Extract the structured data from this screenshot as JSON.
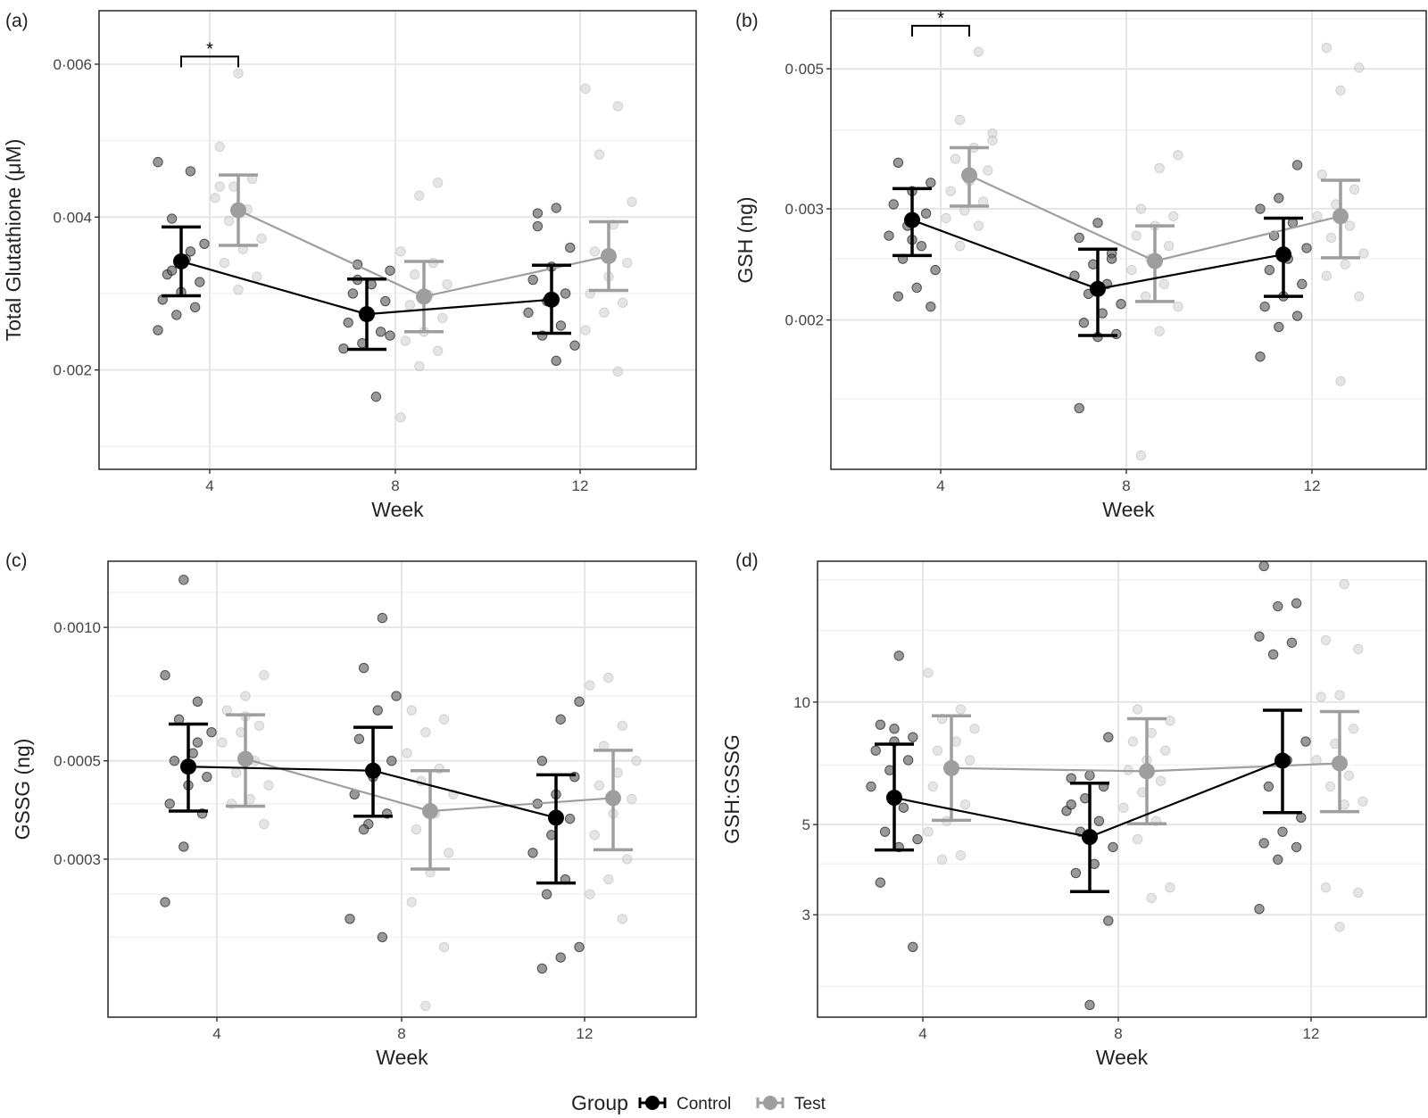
{
  "colors": {
    "control": "#000000",
    "test": "#9e9e9e",
    "grid": "#e6e6e6"
  },
  "legend": {
    "title": "Group",
    "items": [
      {
        "label": "Control",
        "color": "#000000"
      },
      {
        "label": "Test",
        "color": "#9e9e9e"
      }
    ]
  },
  "chart_data": [
    {
      "panel": "(a)",
      "type": "scatter",
      "scale": "linear",
      "xlabel": "Week",
      "ylabel": "Total Glutathione (μM)",
      "weeks": [
        "4",
        "8",
        "12"
      ],
      "ylim": [
        0.0007,
        0.0067
      ],
      "yticks": [
        {
          "value": 0.002,
          "label": "0·002"
        },
        {
          "value": 0.004,
          "label": "0·004"
        },
        {
          "value": 0.006,
          "label": "0·006"
        }
      ],
      "yminor": [
        0.001,
        0.003,
        0.005
      ],
      "significance": [
        {
          "week": "4",
          "label": "*",
          "y": 0.0061
        }
      ],
      "series": [
        {
          "name": "Control",
          "means": [
            0.00342,
            0.00273,
            0.00292
          ],
          "lower": [
            0.00297,
            0.00227,
            0.00248
          ],
          "upper": [
            0.00387,
            0.00319,
            0.00337
          ],
          "points": [
            [
              0.00472,
              0.0046,
              0.00398,
              0.00365,
              0.00345,
              0.00325,
              0.00315,
              0.00302,
              0.00292,
              0.00282,
              0.00272,
              0.00252,
              0.00355,
              0.0033
            ],
            [
              0.00338,
              0.0033,
              0.00312,
              0.003,
              0.0029,
              0.00272,
              0.00262,
              0.0025,
              0.00235,
              0.00228,
              0.00165,
              0.00318,
              0.00245
            ],
            [
              0.00412,
              0.00388,
              0.0036,
              0.00335,
              0.00318,
              0.003,
              0.0029,
              0.00275,
              0.00258,
              0.00245,
              0.00232,
              0.00212,
              0.00405
            ]
          ]
        },
        {
          "name": "Test",
          "means": [
            0.00409,
            0.00296,
            0.00349
          ],
          "lower": [
            0.00363,
            0.0025,
            0.00304
          ],
          "upper": [
            0.00455,
            0.00342,
            0.00394
          ],
          "points": [
            [
              0.00588,
              0.00492,
              0.0045,
              0.0044,
              0.00425,
              0.0041,
              0.00395,
              0.00372,
              0.00358,
              0.0034,
              0.00322,
              0.00305,
              0.0044
            ],
            [
              0.00445,
              0.00428,
              0.00355,
              0.0034,
              0.00325,
              0.00312,
              0.00298,
              0.00285,
              0.00268,
              0.0025,
              0.00238,
              0.00225,
              0.00205,
              0.00138
            ],
            [
              0.00568,
              0.00545,
              0.00482,
              0.0042,
              0.0039,
              0.00355,
              0.0034,
              0.00322,
              0.003,
              0.00288,
              0.00275,
              0.00252,
              0.00198
            ]
          ]
        }
      ]
    },
    {
      "panel": "(b)",
      "type": "scatter",
      "scale": "log",
      "xlabel": "Week",
      "ylabel": "GSH (ng)",
      "weeks": [
        "4",
        "8",
        "12"
      ],
      "ylim": [
        0.00116,
        0.00618
      ],
      "yticks": [
        {
          "value": 0.002,
          "label": "0·002"
        },
        {
          "value": 0.003,
          "label": "0·003"
        },
        {
          "value": 0.005,
          "label": "0·005"
        }
      ],
      "yminor": [
        0.0015,
        0.0025,
        0.004,
        0.006
      ],
      "significance": [
        {
          "week": "4",
          "label": "*",
          "y": 0.00585
        }
      ],
      "series": [
        {
          "name": "Control",
          "means": [
            0.00288,
            0.00224,
            0.00254
          ],
          "lower": [
            0.00253,
            0.00189,
            0.00218
          ],
          "upper": [
            0.00323,
            0.00259,
            0.0029
          ],
          "points": [
            [
              0.00355,
              0.0033,
              0.0032,
              0.00305,
              0.00295,
              0.00282,
              0.00272,
              0.00262,
              0.0025,
              0.0024,
              0.00225,
              0.00218,
              0.0021,
              0.00268
            ],
            [
              0.00285,
              0.0027,
              0.00255,
              0.00245,
              0.00235,
              0.00228,
              0.0022,
              0.00212,
              0.00205,
              0.00198,
              0.0019,
              0.00188,
              0.00145,
              0.0025
            ],
            [
              0.00352,
              0.00312,
              0.003,
              0.00285,
              0.00272,
              0.0026,
              0.0025,
              0.0024,
              0.00228,
              0.00218,
              0.0021,
              0.00203,
              0.00195,
              0.00175
            ]
          ]
        },
        {
          "name": "Test",
          "means": [
            0.00339,
            0.00248,
            0.00292
          ],
          "lower": [
            0.00303,
            0.00214,
            0.00251
          ],
          "upper": [
            0.00375,
            0.00282,
            0.00333
          ],
          "points": [
            [
              0.00532,
              0.00415,
              0.00395,
              0.00375,
              0.0036,
              0.00345,
              0.00332,
              0.0032,
              0.00308,
              0.00298,
              0.0029,
              0.00282,
              0.00262,
              0.00385
            ],
            [
              0.00365,
              0.00348,
              0.003,
              0.00292,
              0.00282,
              0.00272,
              0.00262,
              0.0025,
              0.0024,
              0.00228,
              0.00218,
              0.0021,
              0.00192,
              0.00122
            ],
            [
              0.0054,
              0.00502,
              0.00462,
              0.0034,
              0.00322,
              0.00305,
              0.00292,
              0.00282,
              0.0027,
              0.00255,
              0.00245,
              0.00235,
              0.00218,
              0.0016
            ]
          ]
        }
      ]
    },
    {
      "panel": "(c)",
      "type": "scatter",
      "scale": "log",
      "xlabel": "Week",
      "ylabel": "GSSG (ng)",
      "weeks": [
        "4",
        "8",
        "12"
      ],
      "ylim": [
        0.000132,
        0.00141
      ],
      "yticks": [
        {
          "value": 0.0003,
          "label": "0·0003"
        },
        {
          "value": 0.0005,
          "label": "0·0005"
        },
        {
          "value": 0.001,
          "label": "0·0010"
        }
      ],
      "yminor": [
        0.0002,
        0.00025,
        0.0004,
        0.0007,
        0.0012
      ],
      "series": [
        {
          "name": "Control",
          "means": [
            0.000485,
            0.000475,
            0.000372
          ],
          "lower": [
            0.000385,
            0.000375,
            0.000265
          ],
          "upper": [
            0.000605,
            0.000595,
            0.000465
          ],
          "points": [
            [
              0.00128,
              0.00078,
              0.00068,
              0.00062,
              0.00058,
              0.00052,
              0.0005,
              0.00046,
              0.00044,
              0.0004,
              0.00038,
              0.00032,
              0.00024,
              0.00055
            ],
            [
              0.00105,
              0.00081,
              0.0007,
              0.00065,
              0.00056,
              0.0005,
              0.00046,
              0.00042,
              0.00038,
              0.00036,
              0.00022,
              0.0002,
              0.00035
            ],
            [
              0.00068,
              0.00062,
              0.0005,
              0.00046,
              0.00042,
              0.0004,
              0.00037,
              0.00034,
              0.00031,
              0.00027,
              0.00025,
              0.00019,
              0.00018,
              0.00017
            ]
          ]
        },
        {
          "name": "Test",
          "means": [
            0.000505,
            0.000385,
            0.000412
          ],
          "lower": [
            0.000395,
            0.000285,
            0.000315
          ],
          "upper": [
            0.000635,
            0.000475,
            0.000528
          ],
          "points": [
            [
              0.00078,
              0.0007,
              0.00065,
              0.0006,
              0.00058,
              0.00055,
              0.0005,
              0.00047,
              0.00044,
              0.00041,
              0.0004,
              0.00036,
              0.00063
            ],
            [
              0.00065,
              0.00062,
              0.00058,
              0.00052,
              0.00048,
              0.00045,
              0.00042,
              0.00038,
              0.00035,
              0.00031,
              0.00028,
              0.00024,
              0.00019,
              0.00014
            ],
            [
              0.00077,
              0.00074,
              0.0006,
              0.00054,
              0.0005,
              0.00047,
              0.00044,
              0.00041,
              0.00038,
              0.00034,
              0.0003,
              0.00027,
              0.00025,
              0.00022
            ]
          ]
        }
      ]
    },
    {
      "panel": "(d)",
      "type": "scatter",
      "scale": "log",
      "xlabel": "Week",
      "ylabel": "GSH:GSSG",
      "weeks": [
        "4",
        "8",
        "12"
      ],
      "ylim": [
        1.68,
        22.2
      ],
      "yticks": [
        {
          "value": 3,
          "label": "3"
        },
        {
          "value": 5,
          "label": "5"
        },
        {
          "value": 10,
          "label": "10"
        }
      ],
      "yminor": [
        2,
        4,
        7,
        15,
        20
      ],
      "series": [
        {
          "name": "Control",
          "means": [
            5.82,
            4.66,
            7.18
          ],
          "lower": [
            4.33,
            3.42,
            5.35
          ],
          "upper": [
            7.88,
            6.32,
            9.55
          ],
          "points": [
            [
              13.0,
              8.8,
              8.2,
              8.0,
              7.6,
              7.2,
              6.8,
              6.2,
              5.5,
              4.8,
              4.6,
              4.4,
              3.6,
              2.5,
              8.6
            ],
            [
              8.2,
              6.6,
              6.5,
              6.2,
              5.8,
              5.4,
              5.1,
              4.8,
              4.4,
              4.0,
              3.8,
              2.9,
              1.8,
              5.6
            ],
            [
              21.6,
              17.5,
              17.2,
              14.5,
              14.0,
              13.1,
              8.0,
              7.2,
              6.2,
              5.2,
              4.8,
              4.5,
              4.4,
              4.1,
              3.1
            ]
          ]
        },
        {
          "name": "Test",
          "means": [
            6.88,
            6.76,
            7.07
          ],
          "lower": [
            5.12,
            5.02,
            5.38
          ],
          "upper": [
            9.25,
            9.1,
            9.48
          ],
          "points": [
            [
              11.8,
              9.6,
              9.1,
              8.6,
              8.0,
              7.6,
              7.2,
              6.8,
              6.2,
              5.6,
              5.1,
              4.8,
              4.2,
              4.1
            ],
            [
              9.6,
              9.0,
              8.4,
              8.0,
              7.6,
              7.2,
              6.8,
              6.4,
              6.0,
              5.5,
              5.1,
              4.6,
              3.5,
              3.3
            ],
            [
              19.5,
              14.2,
              13.5,
              10.4,
              10.3,
              8.6,
              7.9,
              7.2,
              6.6,
              6.2,
              5.7,
              5.6,
              3.5,
              3.4,
              2.8
            ]
          ]
        }
      ]
    }
  ]
}
